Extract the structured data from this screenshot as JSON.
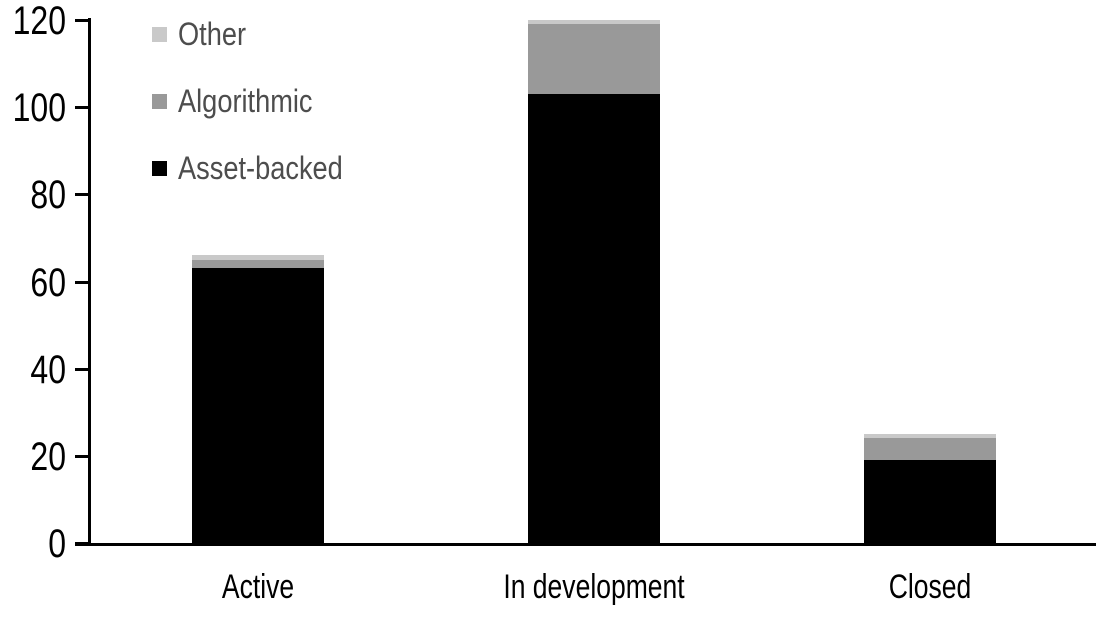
{
  "chart_data": {
    "type": "bar",
    "stacked": true,
    "title": "",
    "xlabel": "",
    "ylabel": "",
    "categories": [
      "Active",
      "In development",
      "Closed"
    ],
    "series": [
      {
        "name": "Asset-backed",
        "color": "#000000",
        "values": [
          63,
          103,
          19
        ]
      },
      {
        "name": "Algorithmic",
        "color": "#999999",
        "values": [
          2,
          16,
          5
        ]
      },
      {
        "name": "Other",
        "color": "#c9c9c9",
        "values": [
          1,
          1,
          1
        ]
      }
    ],
    "yaxis": {
      "min": 0,
      "max": 120,
      "tick_interval": 20,
      "ticks": [
        0,
        20,
        40,
        60,
        80,
        100,
        120
      ],
      "grid": false
    },
    "legend": {
      "position": "upper-left",
      "order_top_to_bottom": [
        "Other",
        "Algorithmic",
        "Asset-backed"
      ],
      "text_color": "#4d4d4d"
    },
    "styles": {
      "axis_color": "#000000",
      "background": "#ffffff"
    }
  }
}
